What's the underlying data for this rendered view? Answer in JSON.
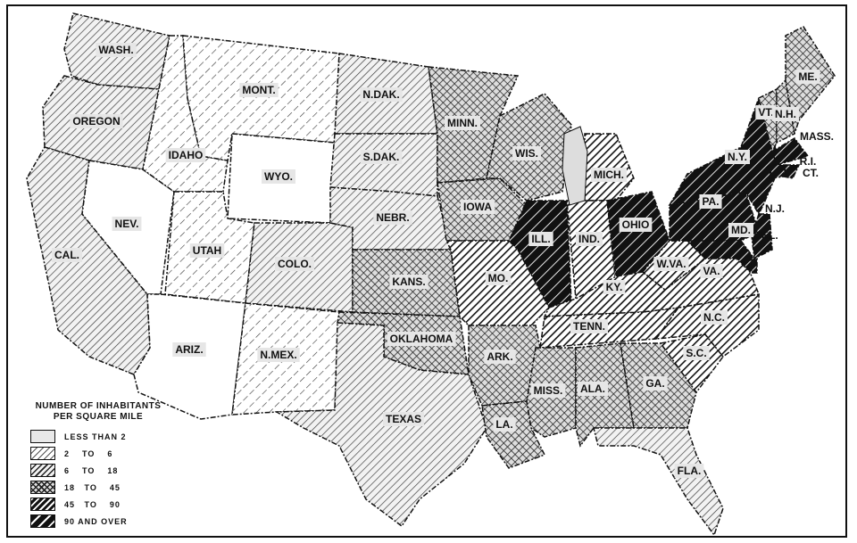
{
  "legend": {
    "title_line1": "NUMBER OF INHABITANTS",
    "title_line2": "PER SQUARE MILE",
    "classes": [
      {
        "label": "LESS THAN 2",
        "pattern": "plain-light"
      },
      {
        "label": "2    TO    6",
        "pattern": "sparse-dashed-hatch"
      },
      {
        "label": "6    TO    18",
        "pattern": "diagonal-hatch"
      },
      {
        "label": "18   TO    45",
        "pattern": "cross-hatch"
      },
      {
        "label": "45   TO    90",
        "pattern": "heavy-hatch"
      },
      {
        "label": "90 AND OVER",
        "pattern": "black-with-white-lines"
      }
    ]
  },
  "states": [
    {
      "name": "WASH.",
      "class": 2
    },
    {
      "name": "OREGON",
      "class": 2
    },
    {
      "name": "CAL.",
      "class": 2
    },
    {
      "name": "NEV.",
      "class": 0
    },
    {
      "name": "IDAHO",
      "class": 1
    },
    {
      "name": "MONT.",
      "class": 1
    },
    {
      "name": "WYO.",
      "class": 0
    },
    {
      "name": "UTAH",
      "class": 1
    },
    {
      "name": "COLO.",
      "class": 2
    },
    {
      "name": "ARIZ.",
      "class": 0
    },
    {
      "name": "N.MEX.",
      "class": 1
    },
    {
      "name": "N.DAK.",
      "class": 2
    },
    {
      "name": "S.DAK.",
      "class": 2
    },
    {
      "name": "NEBR.",
      "class": 2
    },
    {
      "name": "KANS.",
      "class": 3
    },
    {
      "name": "OKLAHOMA",
      "class": 3
    },
    {
      "name": "TEXAS",
      "class": 2
    },
    {
      "name": "MINN.",
      "class": 3
    },
    {
      "name": "IOWA",
      "class": 3
    },
    {
      "name": "WIS.",
      "class": 3
    },
    {
      "name": "MICH.",
      "class": 4
    },
    {
      "name": "ILL.",
      "class": 5
    },
    {
      "name": "IND.",
      "class": 4
    },
    {
      "name": "OHIO",
      "class": 5
    },
    {
      "name": "MO.",
      "class": 4
    },
    {
      "name": "KY.",
      "class": 4
    },
    {
      "name": "TENN.",
      "class": 4
    },
    {
      "name": "ARK.",
      "class": 3
    },
    {
      "name": "LA.",
      "class": 3
    },
    {
      "name": "MISS.",
      "class": 3
    },
    {
      "name": "ALA.",
      "class": 3
    },
    {
      "name": "GA.",
      "class": 3
    },
    {
      "name": "FLA.",
      "class": 2
    },
    {
      "name": "S.C.",
      "class": 4
    },
    {
      "name": "N.C.",
      "class": 4
    },
    {
      "name": "VA.",
      "class": 4
    },
    {
      "name": "W.VA.",
      "class": 4
    },
    {
      "name": "PA.",
      "class": 5
    },
    {
      "name": "N.Y.",
      "class": 5
    },
    {
      "name": "N.J.",
      "class": 5
    },
    {
      "name": "MD.",
      "class": 5
    },
    {
      "name": "VT.",
      "class": 3
    },
    {
      "name": "N.H.",
      "class": 3
    },
    {
      "name": "ME.",
      "class": 3
    },
    {
      "name": "MASS.",
      "class": 5
    },
    {
      "name": "R.I.",
      "class": 5
    },
    {
      "name": "CT.",
      "class": 5
    },
    {
      "name": "DEL.",
      "class": 5
    }
  ]
}
